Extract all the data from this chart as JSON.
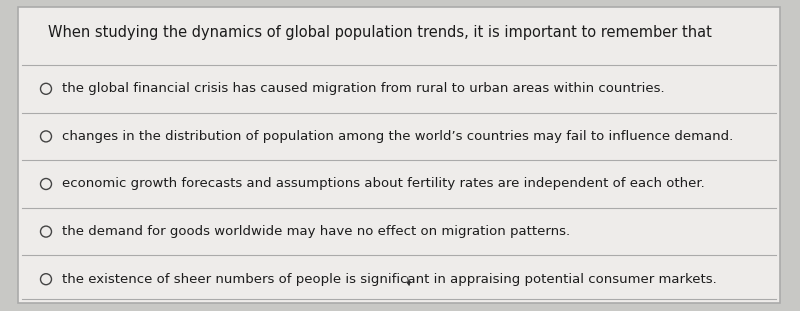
{
  "background_color": "#c8c8c5",
  "card_color": "#eeecea",
  "card_border_color": "#aaaaaa",
  "title": "When studying the dynamics of global population trends, it is important to remember that",
  "title_fontsize": 10.5,
  "title_color": "#1c1c1c",
  "options": [
    "the global financial crisis has caused migration from rural to urban areas within countries.",
    "changes in the distribution of population among the world’s countries may fail to influence demand.",
    "economic growth forecasts and assumptions about fertility rates are independent of each other.",
    "the demand for goods worldwide may have no effect on migration patterns.",
    "the existence of sheer numbers of people is significant in appraising potential consumer markets."
  ],
  "option_fontsize": 9.5,
  "option_color": "#1c1c1c",
  "circle_color": "#444444",
  "separator_color": "#aaaaaa",
  "figsize": [
    8.0,
    3.11
  ],
  "dpi": 100
}
